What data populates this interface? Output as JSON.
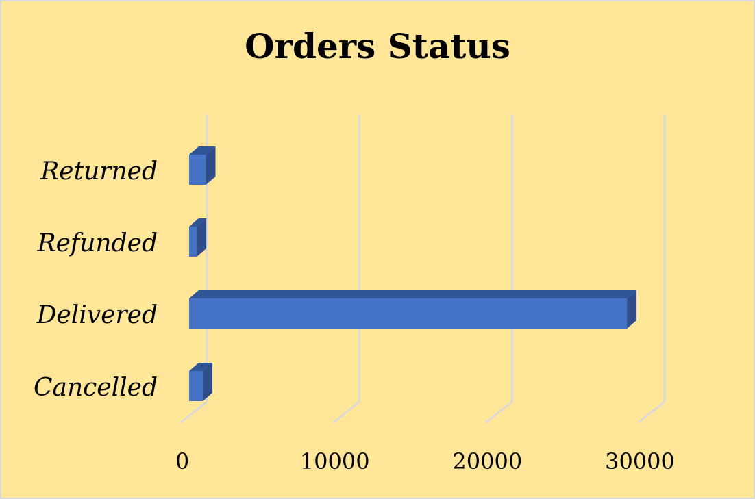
{
  "chart_data": {
    "type": "bar",
    "orientation": "horizontal",
    "style": "3d",
    "title": "Orders Status",
    "categories": [
      "Cancelled",
      "Delivered",
      "Refunded",
      "Returned"
    ],
    "values": [
      900,
      28700,
      500,
      1100
    ],
    "xlim": [
      0,
      30000
    ],
    "xticks": [
      0,
      10000,
      20000,
      30000
    ],
    "xtick_labels": [
      "0",
      "10000",
      "20000",
      "30000"
    ],
    "xlabel": "",
    "ylabel": "",
    "grid": true,
    "legend": "none",
    "colors": {
      "background": "#ffe699",
      "bar_front": "#4472c4",
      "bar_top": "#2f5597",
      "bar_side": "#2e4d8a",
      "gridline": "#d9d9d9"
    }
  }
}
